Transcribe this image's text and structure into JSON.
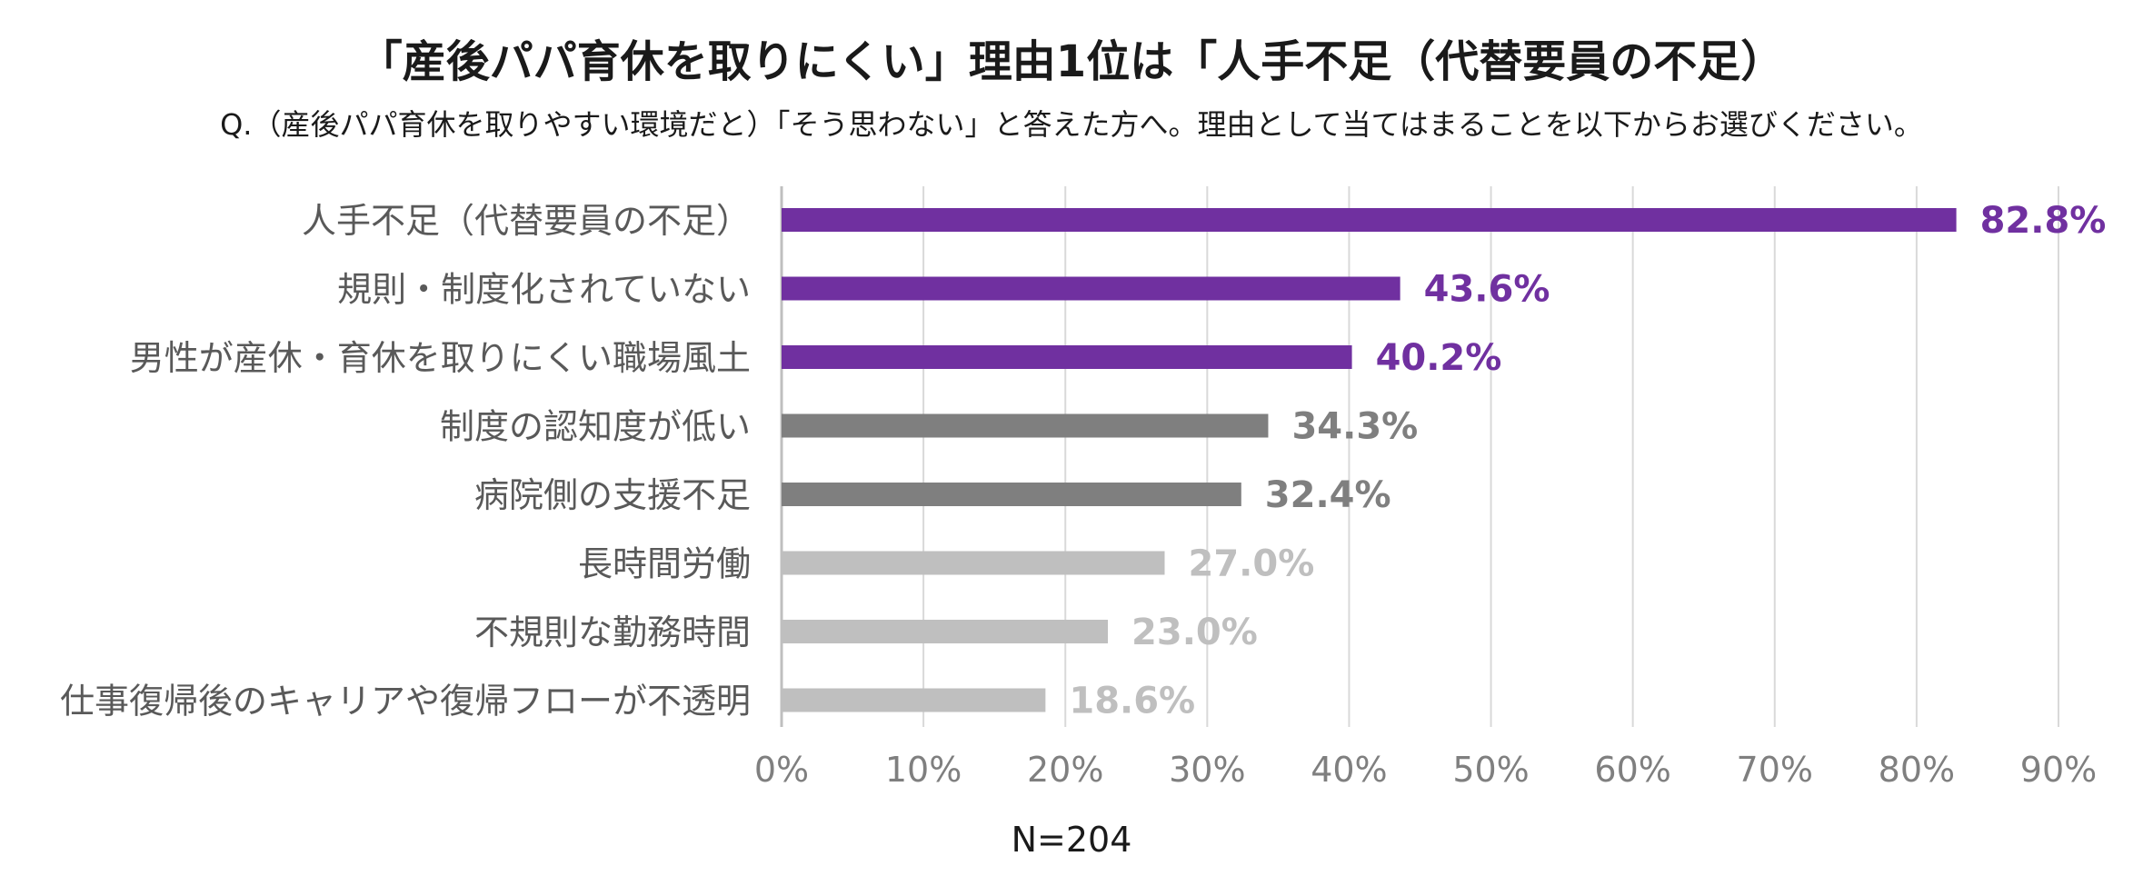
{
  "chart_data": {
    "type": "bar",
    "orientation": "horizontal",
    "title": "「産後パパ育休を取りにくい」理由1位は「人手不足（代替要員の不足）",
    "subtitle": "Q.（産後パパ育休を取りやすい環境だと）「そう思わない」と答えた方へ。理由として当てはまることを以下からお選びください。",
    "categories": [
      "人手不足（代替要員の不足）",
      "規則・制度化されていない",
      "男性が産休・育休を取りにくい職場風土",
      "制度の認知度が低い",
      "病院側の支援不足",
      "長時間労働",
      "不規則な勤務時間",
      "仕事復帰後のキャリアや復帰フローが不透明"
    ],
    "values": [
      82.8,
      43.6,
      40.2,
      34.3,
      32.4,
      27.0,
      23.0,
      18.6
    ],
    "value_labels": [
      "82.8%",
      "43.6%",
      "40.2%",
      "34.3%",
      "32.4%",
      "27.0%",
      "23.0%",
      "18.6%"
    ],
    "bar_colors": [
      "#7030a0",
      "#7030a0",
      "#7030a0",
      "#7f7f7f",
      "#7f7f7f",
      "#bfbfbf",
      "#bfbfbf",
      "#bfbfbf"
    ],
    "xlim": [
      0,
      90
    ],
    "x_ticks": [
      0,
      10,
      20,
      30,
      40,
      50,
      60,
      70,
      80,
      90
    ],
    "x_tick_labels": [
      "0%",
      "10%",
      "20%",
      "30%",
      "40%",
      "50%",
      "60%",
      "70%",
      "80%",
      "90%"
    ],
    "grid": true,
    "footnote": "N=204"
  },
  "colors": {
    "grid": "#d9d9d9",
    "axis": "#bfbfbf",
    "tick_text": "#7f7f7f",
    "category_text": "#595959"
  }
}
